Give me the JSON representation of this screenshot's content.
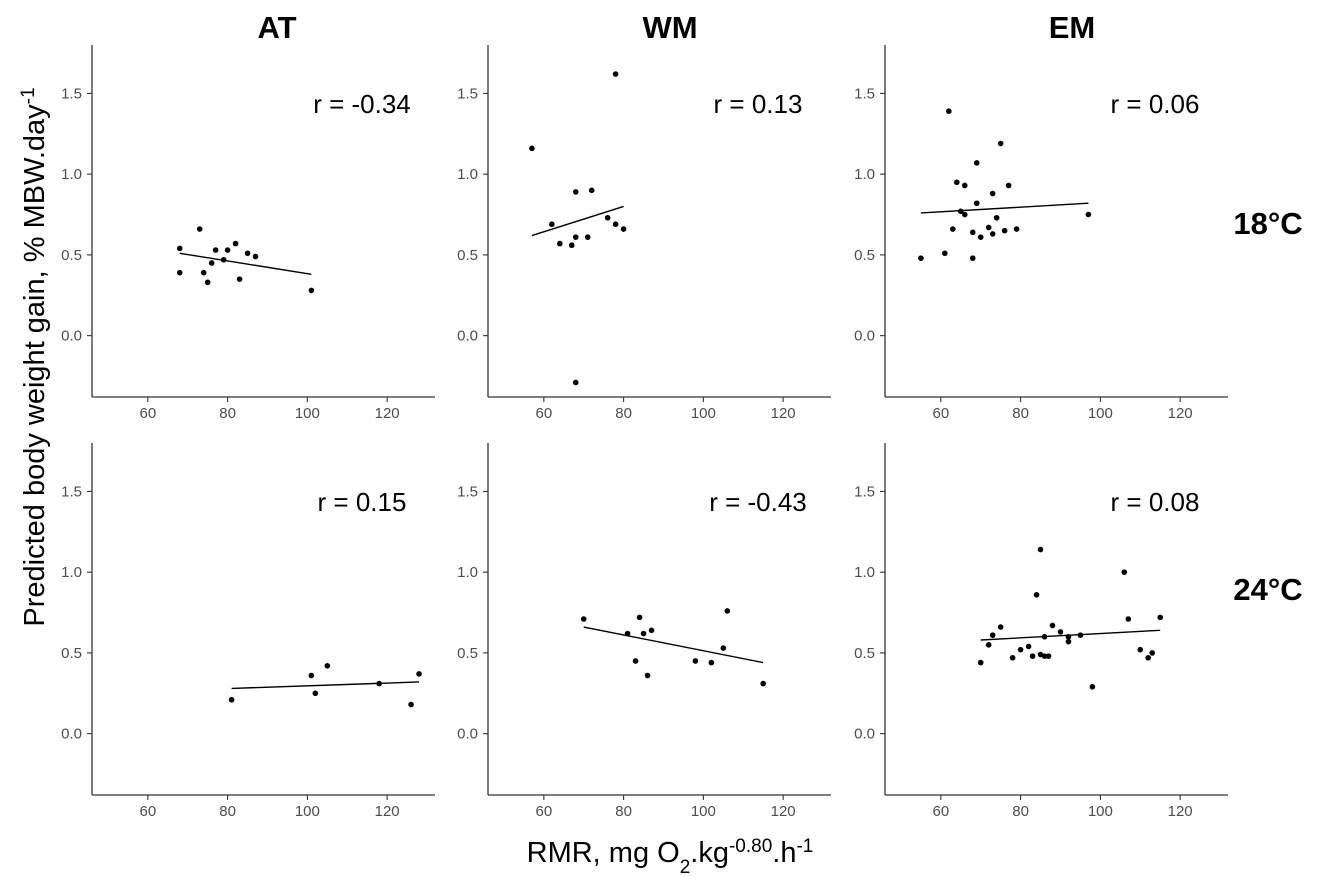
{
  "chart_data": {
    "type": "scatter",
    "columns": [
      "AT",
      "WM",
      "EM"
    ],
    "rows": [
      "18°C",
      "24°C"
    ],
    "ylabel_main": "Predicted body weight gain, % MBW.day",
    "ylabel_sup": "-1",
    "xlabel_main": "RMR, mg O",
    "xlabel_sub": "2",
    "xlabel_mid": ".kg",
    "xlabel_sup1": "-0.80",
    "xlabel_end": ".h",
    "xlabel_sup2": "-1",
    "xlim": [
      46,
      132
    ],
    "ylim": [
      -0.38,
      1.8
    ],
    "xticks": [
      60,
      80,
      100,
      120
    ],
    "yticks": [
      0.0,
      0.5,
      1.0,
      1.5
    ],
    "xtick_labels": [
      "60",
      "80",
      "100",
      "120"
    ],
    "ytick_labels": [
      "0.0",
      "0.5",
      "1.0",
      "1.5"
    ],
    "grid": false,
    "panels": [
      {
        "col": "AT",
        "row": "18°C",
        "r_label": "r = -0.34",
        "fit": [
          [
            68,
            0.51
          ],
          [
            101,
            0.38
          ]
        ],
        "points": [
          [
            68,
            0.54
          ],
          [
            68,
            0.39
          ],
          [
            73,
            0.66
          ],
          [
            74,
            0.39
          ],
          [
            75,
            0.33
          ],
          [
            76,
            0.45
          ],
          [
            77,
            0.53
          ],
          [
            79,
            0.47
          ],
          [
            80,
            0.53
          ],
          [
            82,
            0.57
          ],
          [
            83,
            0.35
          ],
          [
            85,
            0.51
          ],
          [
            87,
            0.49
          ],
          [
            101,
            0.28
          ]
        ]
      },
      {
        "col": "WM",
        "row": "18°C",
        "r_label": "r = 0.13",
        "fit": [
          [
            57,
            0.62
          ],
          [
            80,
            0.8
          ]
        ],
        "points": [
          [
            57,
            1.16
          ],
          [
            62,
            0.69
          ],
          [
            64,
            0.57
          ],
          [
            67,
            0.56
          ],
          [
            68,
            0.61
          ],
          [
            68,
            0.89
          ],
          [
            68,
            -0.29
          ],
          [
            71,
            0.61
          ],
          [
            72,
            0.9
          ],
          [
            76,
            0.73
          ],
          [
            78,
            1.62
          ],
          [
            78,
            0.69
          ],
          [
            80,
            0.66
          ]
        ]
      },
      {
        "col": "EM",
        "row": "18°C",
        "r_label": "r = 0.06",
        "fit": [
          [
            55,
            0.76
          ],
          [
            97,
            0.82
          ]
        ],
        "points": [
          [
            55,
            0.48
          ],
          [
            61,
            0.51
          ],
          [
            62,
            1.39
          ],
          [
            63,
            0.66
          ],
          [
            64,
            0.95
          ],
          [
            65,
            0.77
          ],
          [
            66,
            0.75
          ],
          [
            66,
            0.93
          ],
          [
            68,
            0.64
          ],
          [
            68,
            0.48
          ],
          [
            69,
            0.82
          ],
          [
            69,
            1.07
          ],
          [
            70,
            0.61
          ],
          [
            72,
            0.67
          ],
          [
            73,
            0.63
          ],
          [
            73,
            0.88
          ],
          [
            74,
            0.73
          ],
          [
            75,
            1.19
          ],
          [
            76,
            0.65
          ],
          [
            77,
            0.93
          ],
          [
            79,
            0.66
          ],
          [
            97,
            0.75
          ]
        ]
      },
      {
        "col": "AT",
        "row": "24°C",
        "r_label": "r = 0.15",
        "fit": [
          [
            81,
            0.28
          ],
          [
            128,
            0.32
          ]
        ],
        "points": [
          [
            81,
            0.21
          ],
          [
            101,
            0.36
          ],
          [
            102,
            0.25
          ],
          [
            105,
            0.42
          ],
          [
            118,
            0.31
          ],
          [
            126,
            0.18
          ],
          [
            128,
            0.37
          ]
        ]
      },
      {
        "col": "WM",
        "row": "24°C",
        "r_label": "r = -0.43",
        "fit": [
          [
            70,
            0.66
          ],
          [
            115,
            0.44
          ]
        ],
        "points": [
          [
            70,
            0.71
          ],
          [
            81,
            0.62
          ],
          [
            83,
            0.45
          ],
          [
            84,
            0.72
          ],
          [
            85,
            0.62
          ],
          [
            86,
            0.36
          ],
          [
            87,
            0.64
          ],
          [
            98,
            0.45
          ],
          [
            102,
            0.44
          ],
          [
            105,
            0.53
          ],
          [
            106,
            0.76
          ],
          [
            115,
            0.31
          ]
        ]
      },
      {
        "col": "EM",
        "row": "24°C",
        "r_label": "r = 0.08",
        "fit": [
          [
            70,
            0.58
          ],
          [
            115,
            0.64
          ]
        ],
        "points": [
          [
            70,
            0.44
          ],
          [
            72,
            0.55
          ],
          [
            73,
            0.61
          ],
          [
            75,
            0.66
          ],
          [
            78,
            0.47
          ],
          [
            80,
            0.52
          ],
          [
            82,
            0.54
          ],
          [
            83,
            0.48
          ],
          [
            84,
            0.86
          ],
          [
            85,
            0.49
          ],
          [
            85,
            1.14
          ],
          [
            86,
            0.6
          ],
          [
            86,
            0.48
          ],
          [
            87,
            0.48
          ],
          [
            88,
            0.67
          ],
          [
            90,
            0.63
          ],
          [
            92,
            0.57
          ],
          [
            92,
            0.6
          ],
          [
            95,
            0.61
          ],
          [
            98,
            0.29
          ],
          [
            106,
            1.0
          ],
          [
            107,
            0.71
          ],
          [
            110,
            0.52
          ],
          [
            112,
            0.47
          ],
          [
            113,
            0.5
          ],
          [
            115,
            0.72
          ]
        ]
      }
    ]
  }
}
